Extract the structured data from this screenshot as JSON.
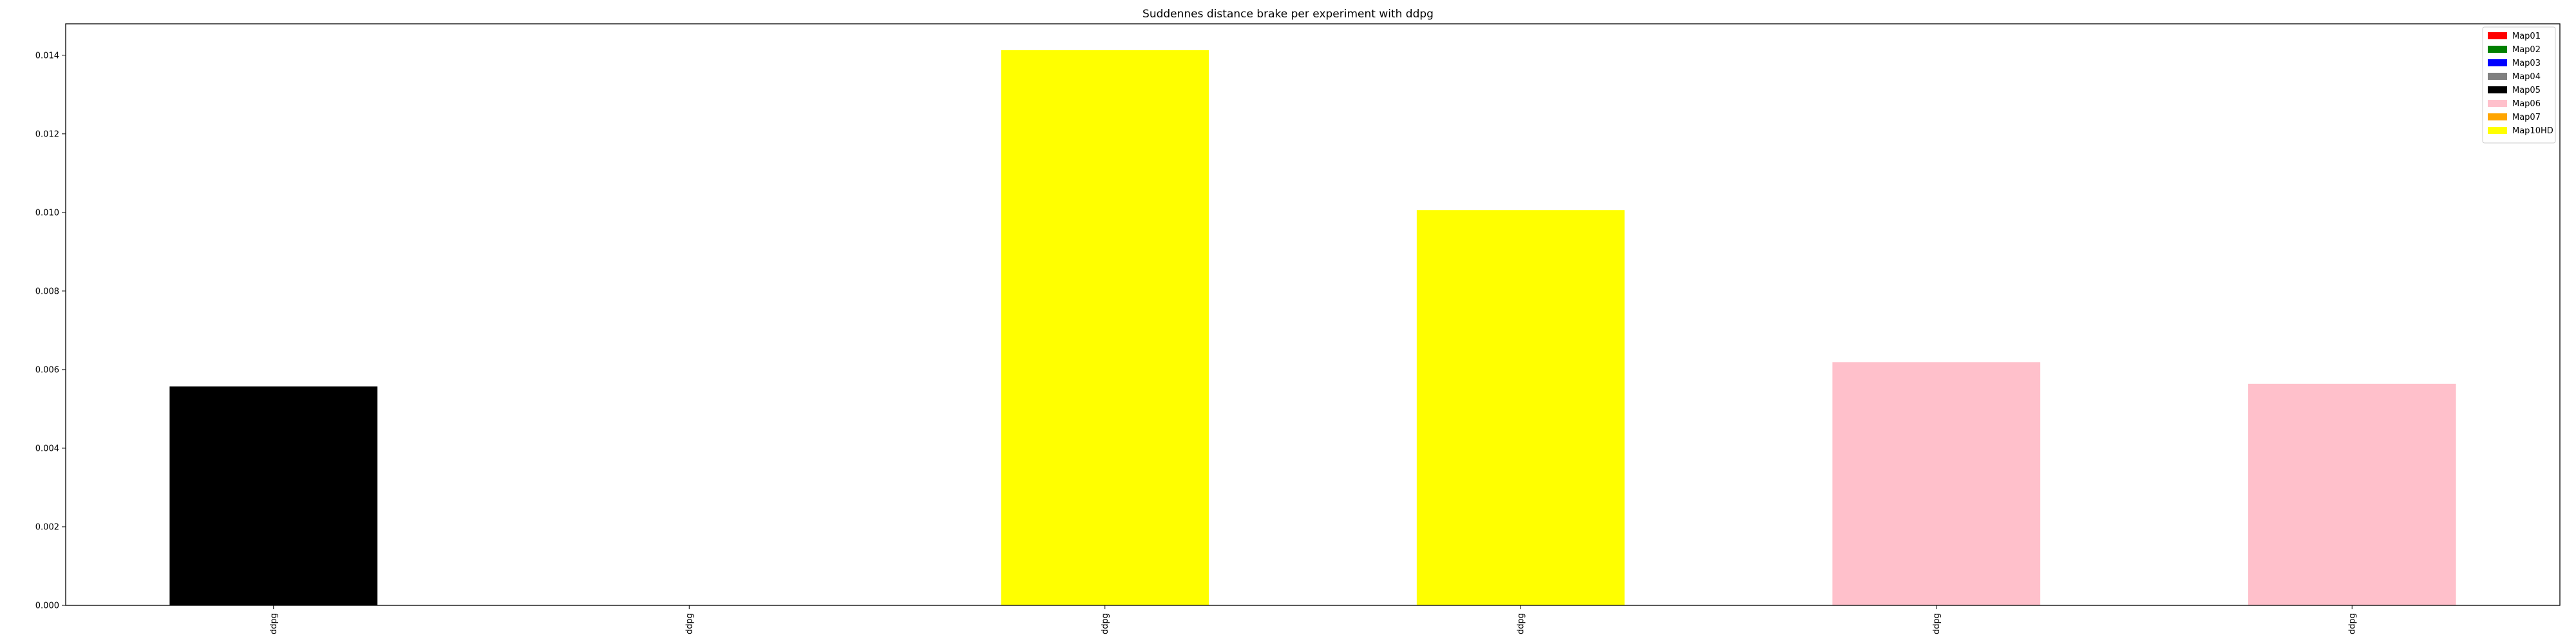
{
  "chart_data": {
    "type": "bar",
    "title": "Suddennes distance brake per experiment with ddpg",
    "xlabel": "",
    "ylabel": "",
    "ylim": [
      0,
      0.0148
    ],
    "yticks": [
      0.0,
      0.002,
      0.004,
      0.006,
      0.008,
      0.01,
      0.012,
      0.014
    ],
    "ytick_labels": [
      "0.000",
      "0.002",
      "0.004",
      "0.006",
      "0.008",
      "0.010",
      "0.012",
      "0.014"
    ],
    "categories": [
      "ddpg",
      "ddpg",
      "ddpg",
      "ddpg",
      "ddpg",
      "ddpg"
    ],
    "values": [
      0.00557,
      0.0,
      0.01413,
      0.01006,
      0.00619,
      0.00564
    ],
    "bar_colors": [
      "#000000",
      "#ffff00",
      "#ffff00",
      "#ffff00",
      "#ffc0cb",
      "#ffc0cb"
    ],
    "grid": false,
    "legend_position": "top-right",
    "legend": [
      {
        "label": "Map01",
        "color": "#ff0000"
      },
      {
        "label": "Map02",
        "color": "#008000"
      },
      {
        "label": "Map03",
        "color": "#0000ff"
      },
      {
        "label": "Map04",
        "color": "#808080"
      },
      {
        "label": "Map05",
        "color": "#000000"
      },
      {
        "label": "Map06",
        "color": "#ffc0cb"
      },
      {
        "label": "Map07",
        "color": "#ffa500"
      },
      {
        "label": "Map10HD",
        "color": "#ffff00"
      }
    ]
  }
}
